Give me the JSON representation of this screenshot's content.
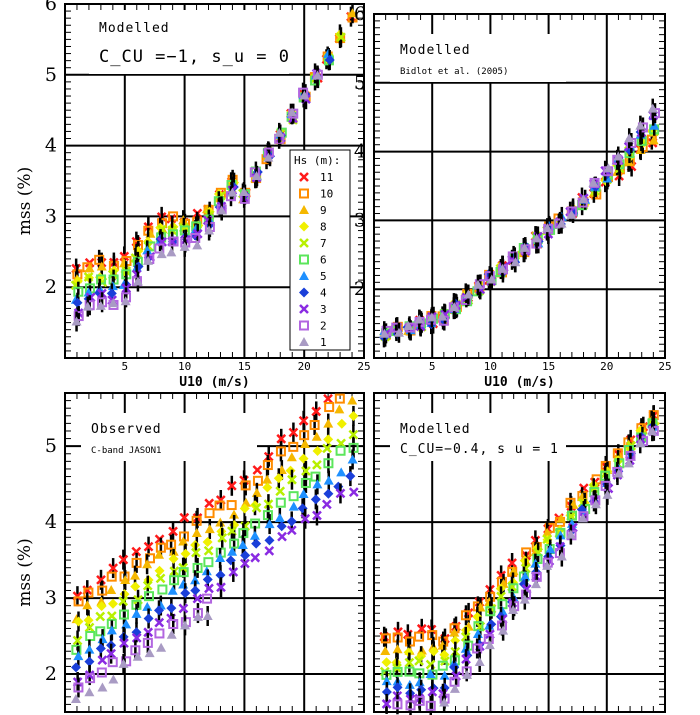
{
  "chart_data": [
    {
      "type": "scatter",
      "panel": "top-left",
      "annotation_lines": [
        "Modelled",
        "C_CU =−1,  s_u = 0"
      ],
      "xlabel": "U10 (m/s)",
      "ylabel": "mss (%)",
      "xlim": [
        0,
        25
      ],
      "ylim": [
        1,
        6
      ],
      "xticks": [
        0,
        5,
        10,
        15,
        20,
        25
      ],
      "yticks": [
        2,
        3,
        4,
        5,
        6
      ],
      "grid": true,
      "legend": {
        "title": "Hs (m):",
        "entries": [
          "11",
          "10",
          "9",
          "8",
          "7",
          "6",
          "5",
          "4",
          "3",
          "2",
          "1"
        ],
        "placement": "right"
      }
    },
    {
      "type": "scatter",
      "panel": "top-right",
      "annotation_lines": [
        "Modelled",
        "Bidlot et al. (2005)"
      ],
      "xlabel": "U10 (m/s)",
      "ylabel": "",
      "xlim": [
        0,
        25
      ],
      "ylim": [
        1,
        6
      ],
      "xticks": [
        5,
        10,
        15,
        20,
        25
      ],
      "yticks": [
        2,
        3,
        4,
        5,
        6
      ],
      "grid": true
    },
    {
      "type": "scatter",
      "panel": "bottom-left",
      "annotation_lines": [
        "Observed",
        "C-band JASON1"
      ],
      "xlabel": "",
      "ylabel": "mss (%)",
      "xlim": [
        0,
        25
      ],
      "ylim": [
        1.5,
        5.7
      ],
      "yticks": [
        2,
        3,
        4,
        5
      ],
      "grid": true
    },
    {
      "type": "scatter",
      "panel": "bottom-right",
      "annotation_lines": [
        "Modelled",
        "C_CU=−0.4, s  u = 1"
      ],
      "xlabel": "",
      "ylabel": "",
      "xlim": [
        0,
        25
      ],
      "ylim": [
        1.5,
        5.7
      ],
      "yticks": [
        2,
        3,
        4,
        5
      ],
      "grid": true
    }
  ],
  "series_styles": [
    {
      "hs": 11,
      "color": "#ff1a1a",
      "marker": "x"
    },
    {
      "hs": 10,
      "color": "#ff8c00",
      "marker": "square"
    },
    {
      "hs": 9,
      "color": "#f5b800",
      "marker": "triangle"
    },
    {
      "hs": 8,
      "color": "#f0f000",
      "marker": "diamond"
    },
    {
      "hs": 7,
      "color": "#b8f000",
      "marker": "x"
    },
    {
      "hs": 6,
      "color": "#5ce65c",
      "marker": "square"
    },
    {
      "hs": 5,
      "color": "#1e90ff",
      "marker": "triangle"
    },
    {
      "hs": 4,
      "color": "#1a3fd9",
      "marker": "diamond"
    },
    {
      "hs": 3,
      "color": "#8a2be2",
      "marker": "x"
    },
    {
      "hs": 2,
      "color": "#b266e0",
      "marker": "square"
    },
    {
      "hs": 1,
      "color": "#a99bc4",
      "marker": "triangle"
    }
  ],
  "panel_models": [
    {
      "mode": "tl",
      "u": [
        1,
        24
      ],
      "hsRange": [
        1,
        11
      ],
      "seed": 11
    },
    {
      "mode": "tr",
      "u": [
        1,
        24
      ],
      "hsRange": [
        1,
        11
      ],
      "seed": 23
    },
    {
      "mode": "bl",
      "u": [
        1,
        24
      ],
      "hsRange": [
        1,
        11
      ],
      "seed": 37
    },
    {
      "mode": "br",
      "u": [
        1,
        24
      ],
      "hsRange": [
        1,
        11
      ],
      "seed": 53
    }
  ]
}
